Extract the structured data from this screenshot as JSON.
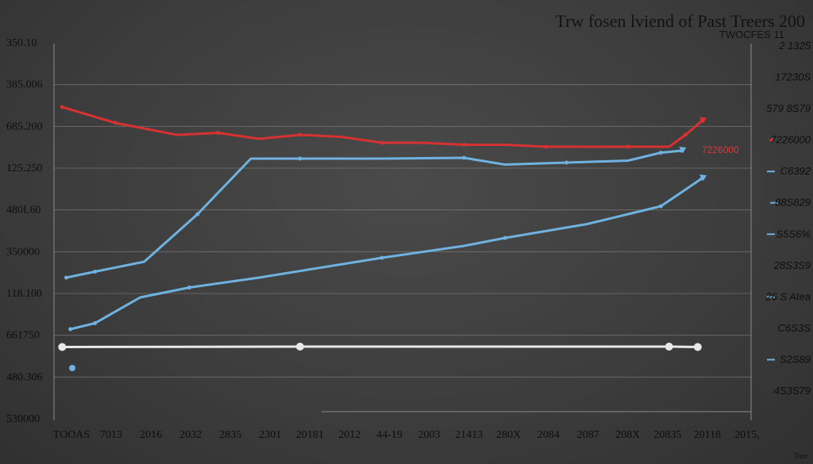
{
  "chart_data": {
    "type": "line",
    "title": "Trw fosen lviend of Past Treers 200",
    "subtitle": "TWOCFES 11",
    "xlabel": "",
    "ylabel": "",
    "x_tick_labels": [
      "TOOAS",
      "7013",
      "2016",
      "2032",
      "2835",
      "2301",
      "20181",
      "2012",
      "44-19",
      "2003",
      "21413",
      "280X",
      "2084",
      "2087",
      "208X",
      "20835",
      "20118",
      "2015,"
    ],
    "y_tick_labels": [
      "350.10",
      "385.006",
      "685.200",
      "125.250",
      "480L60",
      "350000",
      "118.100",
      "661750",
      "480.306",
      "530000"
    ],
    "right_tick_labels": [
      "2 1325",
      "17230S",
      "579 8S79",
      "7226000",
      "C6392",
      "88S829",
      "S5S6%",
      "28S3S9",
      "26 S Atea",
      "C6S3S",
      "S2S89",
      "4S3S79"
    ],
    "data_label": "7226000",
    "footer": "Toor",
    "colors": {
      "red": "#d73232",
      "blue": "#6fb2e0",
      "white": "#e8e8e8",
      "grid": "#9a9a9a"
    },
    "ylim": [
      0,
      9.5
    ],
    "xlim": [
      0,
      17
    ],
    "series": [
      {
        "color": "red",
        "points": [
          [
            0.2,
            7.9
          ],
          [
            1.5,
            7.5
          ],
          [
            3,
            7.2
          ],
          [
            4,
            7.25
          ],
          [
            5,
            7.1
          ],
          [
            6,
            7.2
          ],
          [
            7,
            7.15
          ],
          [
            8,
            7.0
          ],
          [
            9,
            7.0
          ],
          [
            10,
            6.95
          ],
          [
            11,
            6.95
          ],
          [
            12,
            6.9
          ],
          [
            13,
            6.9
          ],
          [
            14,
            6.9
          ],
          [
            15,
            6.9
          ],
          [
            15.4,
            7.2
          ],
          [
            15.8,
            7.55
          ]
        ]
      },
      {
        "color": "blue",
        "points": [
          [
            0.3,
            3.6
          ],
          [
            1,
            3.75
          ],
          [
            2.2,
            4.0
          ],
          [
            3.5,
            5.2
          ],
          [
            4.8,
            6.6
          ],
          [
            6,
            6.6
          ],
          [
            8,
            6.6
          ],
          [
            10,
            6.62
          ],
          [
            11,
            6.45
          ],
          [
            12.5,
            6.5
          ],
          [
            14,
            6.55
          ],
          [
            14.8,
            6.75
          ],
          [
            15.3,
            6.8
          ]
        ]
      },
      {
        "color": "blue",
        "points": [
          [
            0.4,
            2.3
          ],
          [
            1,
            2.45
          ],
          [
            2.1,
            3.1
          ],
          [
            3.3,
            3.35
          ],
          [
            5,
            3.6
          ],
          [
            8,
            4.1
          ],
          [
            10,
            4.4
          ],
          [
            11,
            4.6
          ],
          [
            13,
            4.95
          ],
          [
            14.8,
            5.4
          ],
          [
            15.8,
            6.1
          ]
        ]
      },
      {
        "color": "white",
        "points": [
          [
            0.2,
            1.85
          ],
          [
            6,
            1.86
          ],
          [
            9,
            1.86
          ],
          [
            15,
            1.86
          ],
          [
            15.7,
            1.85
          ]
        ]
      }
    ]
  }
}
